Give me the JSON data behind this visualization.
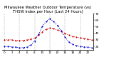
{
  "title": "Milwaukee Weather Outdoor Temperature (vs) THSW Index per Hour (Last 24 Hours)",
  "hours": [
    0,
    1,
    2,
    3,
    4,
    5,
    6,
    7,
    8,
    9,
    10,
    11,
    12,
    13,
    14,
    15,
    16,
    17,
    18,
    19,
    20,
    21,
    22,
    23
  ],
  "temp": [
    30,
    30,
    30,
    29,
    29,
    29,
    30,
    31,
    33,
    37,
    42,
    46,
    48,
    47,
    45,
    43,
    40,
    37,
    35,
    34,
    33,
    32,
    31,
    30
  ],
  "thsw": [
    20,
    20,
    19,
    19,
    18,
    18,
    19,
    22,
    28,
    38,
    50,
    58,
    62,
    58,
    52,
    44,
    34,
    27,
    23,
    21,
    20,
    19,
    19,
    18
  ],
  "temp_color": "#cc0000",
  "thsw_color": "#0000cc",
  "bg_color": "#ffffff",
  "grid_color": "#888888",
  "ylim": [
    15,
    70
  ],
  "yticks": [
    20,
    30,
    40,
    50,
    60,
    70
  ],
  "ytick_labels": [
    "20",
    "30",
    "40",
    "50",
    "60",
    "70"
  ],
  "xticks": [
    0,
    2,
    4,
    6,
    8,
    10,
    12,
    14,
    16,
    18,
    20,
    22
  ],
  "grid_x": [
    0,
    4,
    8,
    12,
    16,
    20
  ],
  "title_fontsize": 3.8,
  "tick_fontsize": 3.0,
  "linewidth": 0.7,
  "markersize": 1.0
}
